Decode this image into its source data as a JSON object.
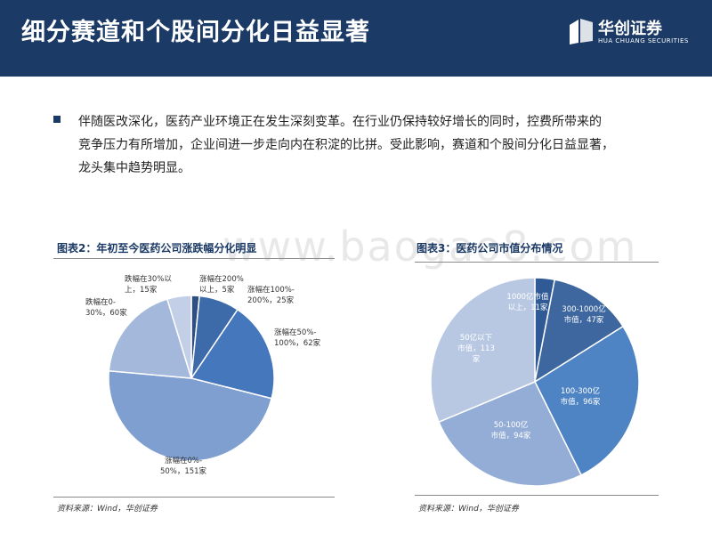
{
  "header": {
    "title": "细分赛道和个股间分化日益显著"
  },
  "logo": {
    "cn": "华创证券",
    "en": "HUA CHUANG SECURITIES"
  },
  "bullet": {
    "lines": [
      "伴随医改深化，医药产业环境正在发生深刻变革。在行业仍保持较好增长的同时，控费所带来的",
      "竞争压力有所增加，企业间进一步走向内在积淀的比拼。受此影响，赛道和个股间分化日益显著，",
      "龙头集中趋势明显。"
    ]
  },
  "watermark": "www.baogao8.com",
  "colors": {
    "header_bg": "#1b3a66",
    "accent": "#1b3a66"
  },
  "chart_data": [
    {
      "type": "pie",
      "title": "图表2：年初至今医药公司涨跌幅分化明显",
      "source": "资料来源：Wind，华创证券",
      "slices": [
        {
          "label": [
            "涨幅在200%",
            "以上，5家"
          ],
          "value": 5,
          "color": "#2f4f80"
        },
        {
          "label": [
            "涨幅在100%-",
            "200%，25家"
          ],
          "value": 25,
          "color": "#3d6aa8"
        },
        {
          "label": [
            "涨幅在50%-",
            "100%，62家"
          ],
          "value": 62,
          "color": "#4577bd"
        },
        {
          "label": [
            "涨幅在0%-",
            "50%，151家"
          ],
          "value": 151,
          "color": "#7f9fd0"
        },
        {
          "label": [
            "跌幅在0-",
            "30%，60家"
          ],
          "value": 60,
          "color": "#a3b8da"
        },
        {
          "label": [
            "跌幅在30%以",
            "上，15家"
          ],
          "value": 15,
          "color": "#c3cfe6"
        }
      ]
    },
    {
      "type": "pie",
      "title": "图表3：医药公司市值分布情况",
      "source": "资料来源：Wind，华创证券",
      "slices": [
        {
          "label": [
            "1000亿市值",
            "以上，11家"
          ],
          "value": 11,
          "color": "#2f5a96"
        },
        {
          "label": [
            "300-1000亿",
            "市值，47家"
          ],
          "value": 47,
          "color": "#3e679f"
        },
        {
          "label": [
            "100-300亿",
            "市值，96家"
          ],
          "value": 96,
          "color": "#4f84c4"
        },
        {
          "label": [
            "50-100亿",
            "市值，94家"
          ],
          "value": 94,
          "color": "#94add6"
        },
        {
          "label": [
            "50亿以下",
            "市值，113",
            "家"
          ],
          "value": 113,
          "color": "#b8c8e3"
        }
      ]
    }
  ]
}
